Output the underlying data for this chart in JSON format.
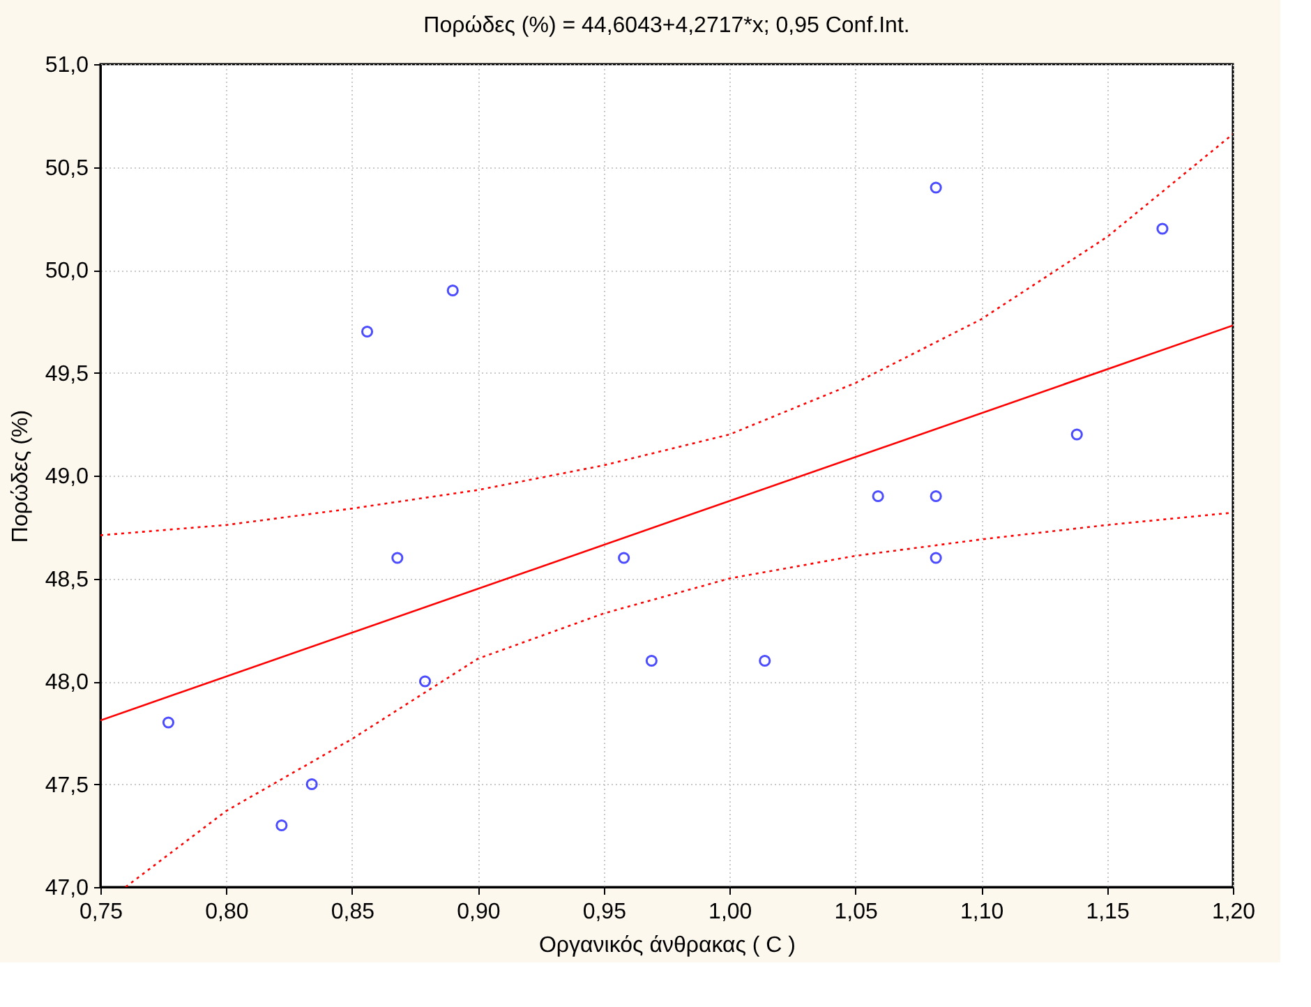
{
  "chart_data": {
    "type": "scatter",
    "title": "Πορώδες (%) = 44,6043+4,2717*x; 0,95 Conf.Int.",
    "xlabel": "Οργανικός άνθρακας ( C )",
    "ylabel": "Πορώδες (%)",
    "xlim": [
      0.75,
      1.2
    ],
    "ylim": [
      47.0,
      51.0
    ],
    "xticks": [
      {
        "value": 0.75,
        "label": "0,75"
      },
      {
        "value": 0.8,
        "label": "0,80"
      },
      {
        "value": 0.85,
        "label": "0,85"
      },
      {
        "value": 0.9,
        "label": "0,90"
      },
      {
        "value": 0.95,
        "label": "0,95"
      },
      {
        "value": 1.0,
        "label": "1,00"
      },
      {
        "value": 1.05,
        "label": "1,05"
      },
      {
        "value": 1.1,
        "label": "1,10"
      },
      {
        "value": 1.15,
        "label": "1,15"
      },
      {
        "value": 1.2,
        "label": "1,20"
      }
    ],
    "yticks": [
      {
        "value": 47.0,
        "label": "47,0"
      },
      {
        "value": 47.5,
        "label": "47,5"
      },
      {
        "value": 48.0,
        "label": "48,0"
      },
      {
        "value": 48.5,
        "label": "48,5"
      },
      {
        "value": 49.0,
        "label": "49,0"
      },
      {
        "value": 49.5,
        "label": "49,5"
      },
      {
        "value": 50.0,
        "label": "50,0"
      },
      {
        "value": 50.5,
        "label": "50,5"
      },
      {
        "value": 51.0,
        "label": "51,0"
      }
    ],
    "grid": true,
    "series": [
      {
        "marker": "circle",
        "color": "#0000ff",
        "x": [
          0.777,
          0.822,
          0.834,
          0.856,
          0.868,
          0.879,
          0.89,
          0.958,
          0.969,
          1.014,
          1.059,
          1.082,
          1.082,
          1.082,
          1.138,
          1.172
        ],
        "values": [
          47.8,
          47.3,
          47.5,
          49.7,
          48.6,
          48.0,
          49.9,
          48.6,
          48.1,
          48.1,
          48.9,
          50.4,
          48.9,
          48.6,
          49.2,
          50.2
        ]
      },
      {
        "type": "line",
        "line_style": "solid",
        "color": "#ff0000",
        "x": [
          0.75,
          1.2
        ],
        "values": [
          47.81,
          49.73
        ]
      },
      {
        "type": "line",
        "line_style": "dotted",
        "color": "#ff0000",
        "x": [
          0.75,
          0.8,
          0.85,
          0.9,
          0.95,
          1.0,
          1.05,
          1.1,
          1.15,
          1.2
        ],
        "values": [
          48.71,
          48.76,
          48.84,
          48.93,
          49.05,
          49.2,
          49.45,
          49.76,
          50.16,
          50.66
        ]
      },
      {
        "type": "line",
        "line_style": "dotted",
        "color": "#ff0000",
        "x": [
          0.76,
          0.8,
          0.85,
          0.9,
          0.95,
          1.0,
          1.05,
          1.1,
          1.15,
          1.2
        ],
        "values": [
          47.0,
          47.37,
          47.72,
          48.11,
          48.33,
          48.5,
          48.61,
          48.69,
          48.76,
          48.82
        ]
      }
    ]
  }
}
